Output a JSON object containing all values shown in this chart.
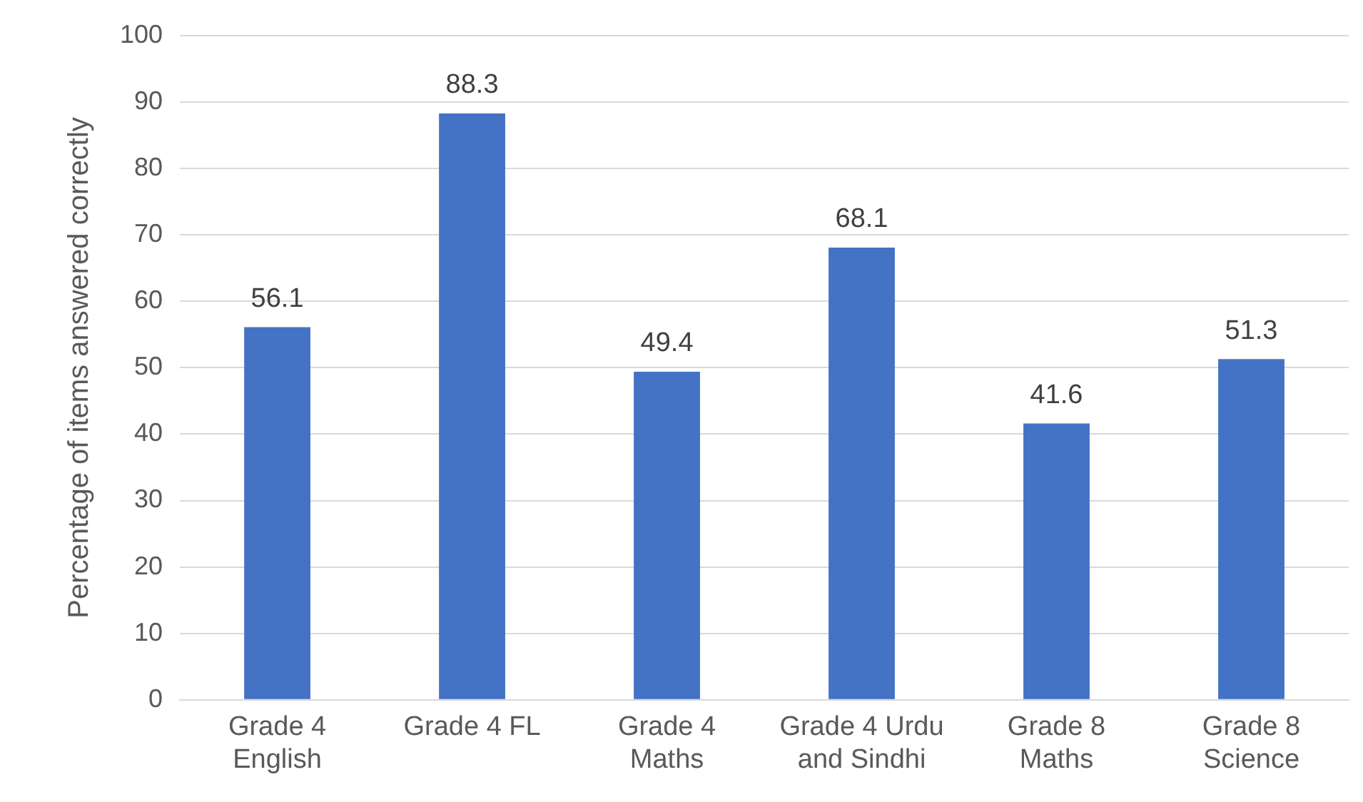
{
  "chart_data": {
    "type": "bar",
    "ylabel": "Percentage of items answered correctly",
    "categories": [
      "Grade 4 English",
      "Grade 4 FL",
      "Grade 4 Maths",
      "Grade 4 Urdu and Sindhi",
      "Grade 8 Maths",
      "Grade 8 Science"
    ],
    "values": [
      56.1,
      88.3,
      49.4,
      68.1,
      41.6,
      51.3
    ],
    "color": "#4472c4",
    "ylim": [
      0,
      100
    ],
    "yticks": [
      0,
      10,
      20,
      30,
      40,
      50,
      60,
      70,
      80,
      90,
      100
    ],
    "grid": "y",
    "data_labels": true,
    "legend": false
  }
}
